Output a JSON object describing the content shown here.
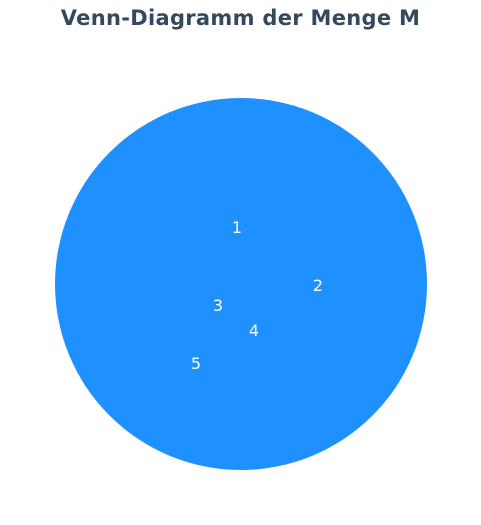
{
  "title": "Venn-Diagramm der Menge M",
  "colors": {
    "title": "#34495e",
    "set_fill": "#1e90ff",
    "element_text": "#ffffff",
    "background": "#ffffff"
  },
  "set": {
    "elements": [
      "1",
      "2",
      "3",
      "4",
      "5"
    ]
  }
}
